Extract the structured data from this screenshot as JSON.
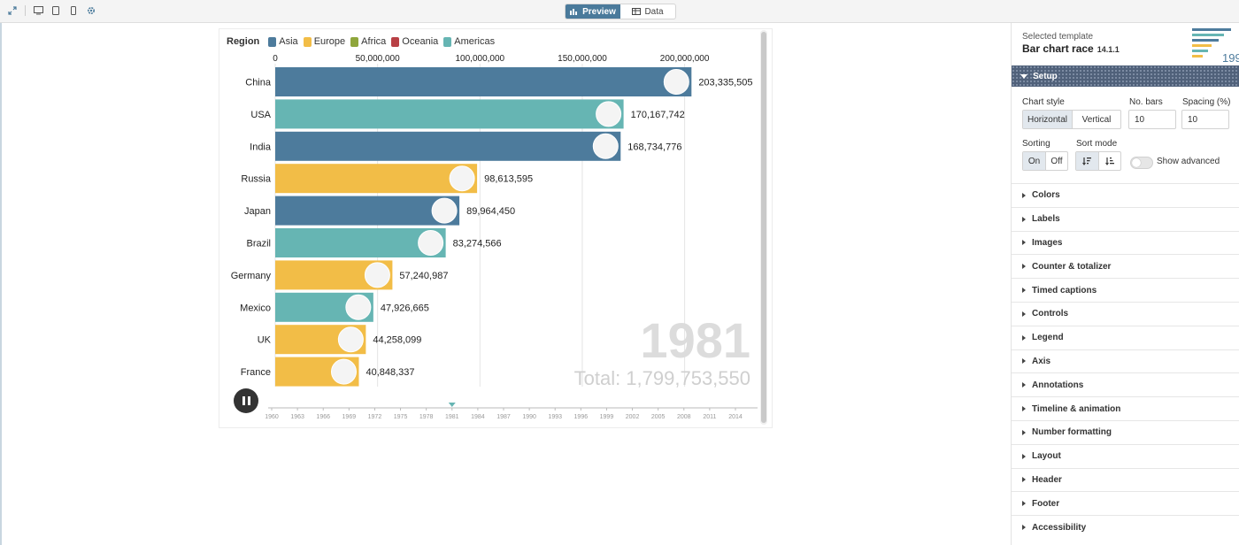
{
  "toolbar": {
    "preview_label": "Preview",
    "data_label": "Data"
  },
  "chart_data": {
    "type": "bar",
    "legend_title": "Region",
    "legend": [
      {
        "name": "Asia",
        "color": "#4d7b9c"
      },
      {
        "name": "Europe",
        "color": "#f2bd47"
      },
      {
        "name": "Africa",
        "color": "#8fa63c"
      },
      {
        "name": "Oceania",
        "color": "#b84045"
      },
      {
        "name": "Americas",
        "color": "#66b5b3"
      }
    ],
    "categories": [
      "China",
      "USA",
      "India",
      "Russia",
      "Japan",
      "Brazil",
      "Germany",
      "Mexico",
      "UK",
      "France"
    ],
    "values": [
      203335505,
      170167742,
      168734776,
      98613595,
      89964450,
      83274566,
      57240987,
      47926665,
      44258099,
      40848337
    ],
    "value_labels": [
      "203,335,505",
      "170,167,742",
      "168,734,776",
      "98,613,595",
      "89,964,450",
      "83,274,566",
      "57,240,987",
      "47,926,665",
      "44,258,099",
      "40,848,337"
    ],
    "regions": [
      "Asia",
      "Americas",
      "Asia",
      "Europe",
      "Asia",
      "Americas",
      "Europe",
      "Americas",
      "Europe",
      "Europe"
    ],
    "x_ticks": [
      0,
      50000000,
      100000000,
      150000000,
      200000000
    ],
    "x_tick_labels": [
      "0",
      "50,000,000",
      "100,000,000",
      "150,000,000",
      "200,000,000"
    ],
    "xlim": [
      0,
      230000000
    ],
    "year": "1981",
    "total_label": "Total: 1,799,753,550",
    "timeline_ticks": [
      "1960",
      "1963",
      "1966",
      "1969",
      "1972",
      "1975",
      "1978",
      "1981",
      "1984",
      "1987",
      "1990",
      "1993",
      "1996",
      "1999",
      "2002",
      "2005",
      "2008",
      "2011",
      "2014"
    ],
    "current_year_index": 7
  },
  "panel": {
    "selected_template_label": "Selected template",
    "template_name": "Bar chart race",
    "template_version": "14.1.1",
    "thumb_year": "199",
    "setup_title": "Setup",
    "chart_style_label": "Chart style",
    "chart_style_options": [
      "Horizontal",
      "Vertical"
    ],
    "no_bars_label": "No. bars",
    "no_bars_value": "10",
    "spacing_label": "Spacing (%)",
    "spacing_value": "10",
    "sorting_label": "Sorting",
    "sorting_options": [
      "On",
      "Off"
    ],
    "sort_mode_label": "Sort mode",
    "show_advanced_label": "Show advanced",
    "sections": [
      "Colors",
      "Labels",
      "Images",
      "Counter & totalizer",
      "Timed captions",
      "Controls",
      "Legend",
      "Axis",
      "Annotations",
      "Timeline & animation",
      "Number formatting",
      "Layout",
      "Header",
      "Footer",
      "Accessibility"
    ]
  }
}
